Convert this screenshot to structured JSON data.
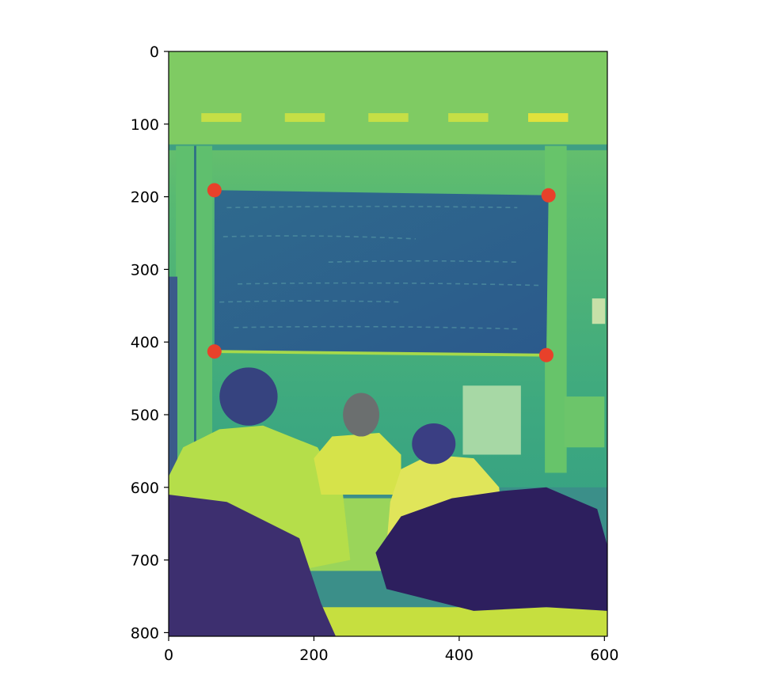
{
  "chart_data": {
    "type": "scatter",
    "title": "",
    "xlabel": "",
    "ylabel": "",
    "image": {
      "description": "viridis-colormapped grayscale photo of a classroom blackboard with students in foreground",
      "colormap": "viridis",
      "width": 604,
      "height": 805
    },
    "xlim": [
      0,
      604
    ],
    "ylim": [
      805,
      0
    ],
    "y_inverted": true,
    "grid": false,
    "xticks": [
      0,
      200,
      400,
      600
    ],
    "yticks": [
      0,
      100,
      200,
      300,
      400,
      500,
      600,
      700,
      800
    ],
    "series": [
      {
        "marker_color": "#e8412a",
        "points": [
          {
            "x": 63,
            "y": 191
          },
          {
            "x": 523,
            "y": 198
          },
          {
            "x": 63,
            "y": 413
          },
          {
            "x": 520,
            "y": 418
          }
        ]
      }
    ],
    "colors": {
      "blackboard": "#2e5f8c",
      "wall_top": "#67c06a",
      "wall": "#48b37a",
      "dark": "#3b3f87",
      "bright": "#dde23c"
    }
  }
}
